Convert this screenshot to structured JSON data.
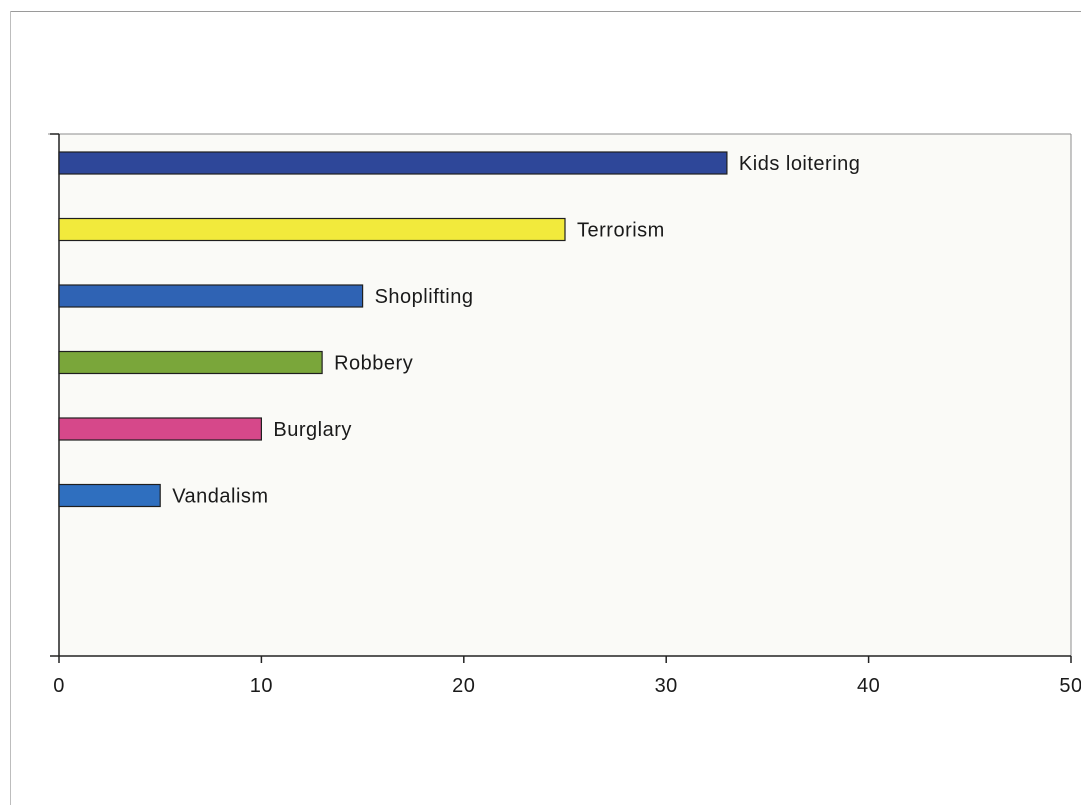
{
  "chart_data": {
    "type": "bar",
    "orientation": "horizontal",
    "categories": [
      "Kids loitering",
      "Terrorism",
      "Shoplifting",
      "Robbery",
      "Burglary",
      "Vandalism"
    ],
    "values": [
      33,
      25,
      15,
      13,
      10,
      5
    ],
    "colors": [
      "#2e4799",
      "#f2ea3c",
      "#2f63b4",
      "#7aa63a",
      "#d6488a",
      "#2f6fbf"
    ],
    "xlim": [
      0,
      50
    ],
    "xticks": [
      0,
      10,
      20,
      30,
      40,
      50
    ],
    "title": "",
    "xlabel": "",
    "ylabel": "",
    "grid": false,
    "legend": "none",
    "data_labels": "category names to the right of each bar"
  }
}
